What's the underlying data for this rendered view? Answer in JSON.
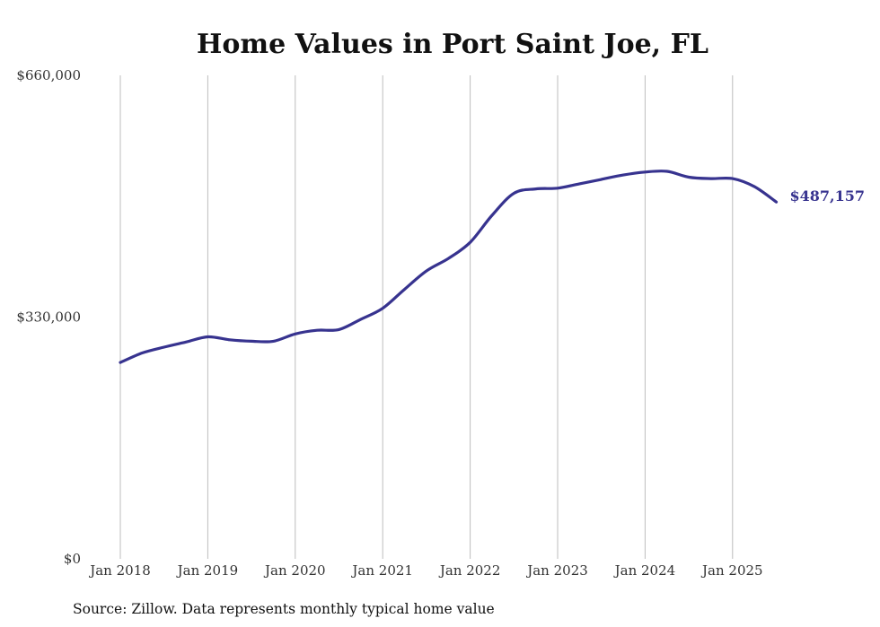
{
  "chart_data": {
    "type": "line",
    "title": "Home Values in Port Saint Joe, FL",
    "xlabel": "",
    "ylabel": "",
    "ylim": [
      0,
      660000
    ],
    "y_ticks": [
      {
        "value": 0,
        "label": "$0"
      },
      {
        "value": 330000,
        "label": "$330,000"
      },
      {
        "value": 660000,
        "label": "$660,000"
      }
    ],
    "x_ticks": [
      {
        "value": 2018,
        "label": "Jan 2018"
      },
      {
        "value": 2019,
        "label": "Jan 2019"
      },
      {
        "value": 2020,
        "label": "Jan 2020"
      },
      {
        "value": 2021,
        "label": "Jan 2021"
      },
      {
        "value": 2022,
        "label": "Jan 2022"
      },
      {
        "value": 2023,
        "label": "Jan 2023"
      },
      {
        "value": 2024,
        "label": "Jan 2024"
      },
      {
        "value": 2025,
        "label": "Jan 2025"
      }
    ],
    "grid": "vertical",
    "series": [
      {
        "color": "#37338f",
        "end_label": "$487,157",
        "x": [
          "2018-01",
          "2018-04",
          "2018-07",
          "2018-10",
          "2019-01",
          "2019-04",
          "2019-07",
          "2019-10",
          "2020-01",
          "2020-04",
          "2020-07",
          "2020-10",
          "2021-01",
          "2021-04",
          "2021-07",
          "2021-10",
          "2022-01",
          "2022-04",
          "2022-07",
          "2022-10",
          "2023-01",
          "2023-04",
          "2023-07",
          "2023-10",
          "2024-01",
          "2024-04",
          "2024-07",
          "2024-10",
          "2025-01",
          "2025-04",
          "2025-07"
        ],
        "values": [
          268000,
          281000,
          289000,
          296000,
          303000,
          299000,
          297000,
          297000,
          307000,
          312000,
          313000,
          327000,
          342000,
          368000,
          393000,
          410000,
          432000,
          469000,
          499000,
          505000,
          506000,
          512000,
          518000,
          524000,
          528000,
          529000,
          521000,
          519000,
          519000,
          508000,
          487157
        ]
      }
    ]
  },
  "footer": {
    "source": "Source: Zillow. Data represents monthly typical home value"
  }
}
